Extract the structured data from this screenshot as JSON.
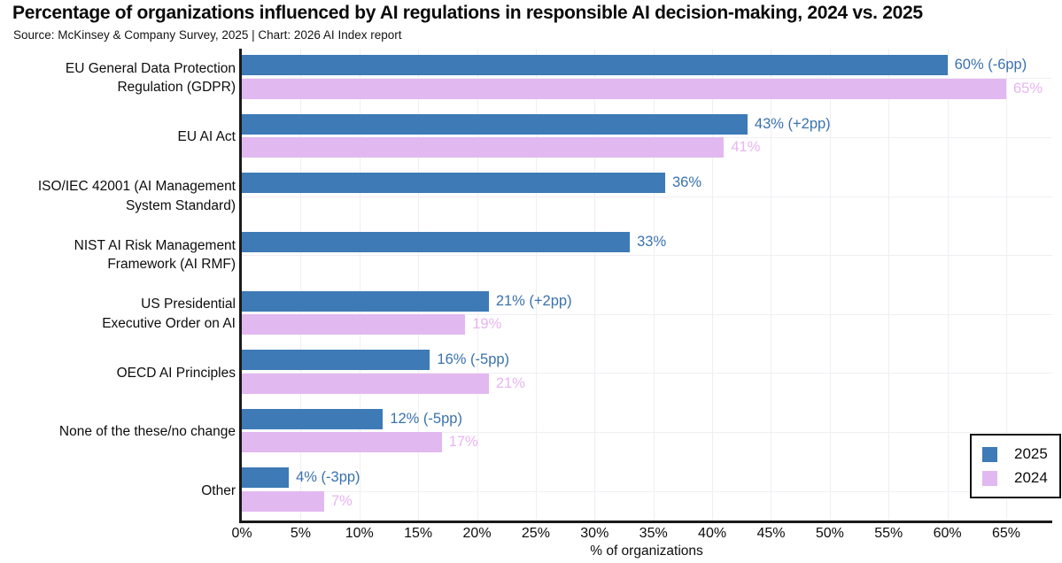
{
  "title": "Percentage of organizations influenced by AI regulations in responsible AI decision-making, 2024 vs. 2025",
  "source": "Source: McKinsey & Company Survey, 2025 | Chart: 2026 AI Index report",
  "legend": {
    "position": "lower right",
    "items": [
      {
        "label": "2025",
        "color": "#3d7ab6"
      },
      {
        "label": "2024",
        "color": "#e2b8f0"
      }
    ]
  },
  "colors": {
    "bar_2025": "#3d7ab6",
    "bar_2024": "#e2b8f0",
    "label_2025": "#3a72ad",
    "label_2024": "#e9b4f2",
    "axis": "#1a1a1a",
    "grid": "#f1eef3",
    "text": "#0d0d0d"
  },
  "chart_data": {
    "type": "bar",
    "orientation": "horizontal",
    "title": "Percentage of organizations influenced by AI regulations in responsible AI decision-making, 2024 vs. 2025",
    "xlabel": "% of organizations",
    "xlim": [
      0,
      65
    ],
    "xticks": [
      0,
      5,
      10,
      15,
      20,
      25,
      30,
      35,
      40,
      45,
      50,
      55,
      60,
      65
    ],
    "xtick_suffix": "%",
    "grid": true,
    "legend_position": "lower right",
    "categories": [
      {
        "lines": [
          "EU General Data Protection",
          "Regulation (GDPR)"
        ]
      },
      {
        "lines": [
          "EU AI Act"
        ]
      },
      {
        "lines": [
          "ISO/IEC 42001 (AI Management",
          "System Standard)"
        ]
      },
      {
        "lines": [
          "NIST AI Risk Management",
          "Framework (AI RMF)"
        ]
      },
      {
        "lines": [
          "US Presidential",
          "Executive Order on AI"
        ]
      },
      {
        "lines": [
          "OECD AI Principles"
        ]
      },
      {
        "lines": [
          "None of the these/no change"
        ]
      },
      {
        "lines": [
          "Other"
        ]
      }
    ],
    "series": [
      {
        "name": "2025",
        "color": "#3d7ab6",
        "label_color": "#3a72ad",
        "values": [
          60,
          43,
          36,
          33,
          21,
          16,
          12,
          4
        ],
        "labels": [
          "60% (-6pp)",
          "43% (+2pp)",
          "36%",
          "33%",
          "21% (+2pp)",
          "16% (-5pp)",
          "12% (-5pp)",
          "4% (-3pp)"
        ]
      },
      {
        "name": "2024",
        "color": "#e2b8f0",
        "label_color": "#e9b4f2",
        "values": [
          65,
          41,
          null,
          null,
          19,
          21,
          17,
          7
        ],
        "labels": [
          "65%",
          "41%",
          "",
          "",
          "19%",
          "21%",
          "17%",
          "7%"
        ]
      }
    ]
  }
}
